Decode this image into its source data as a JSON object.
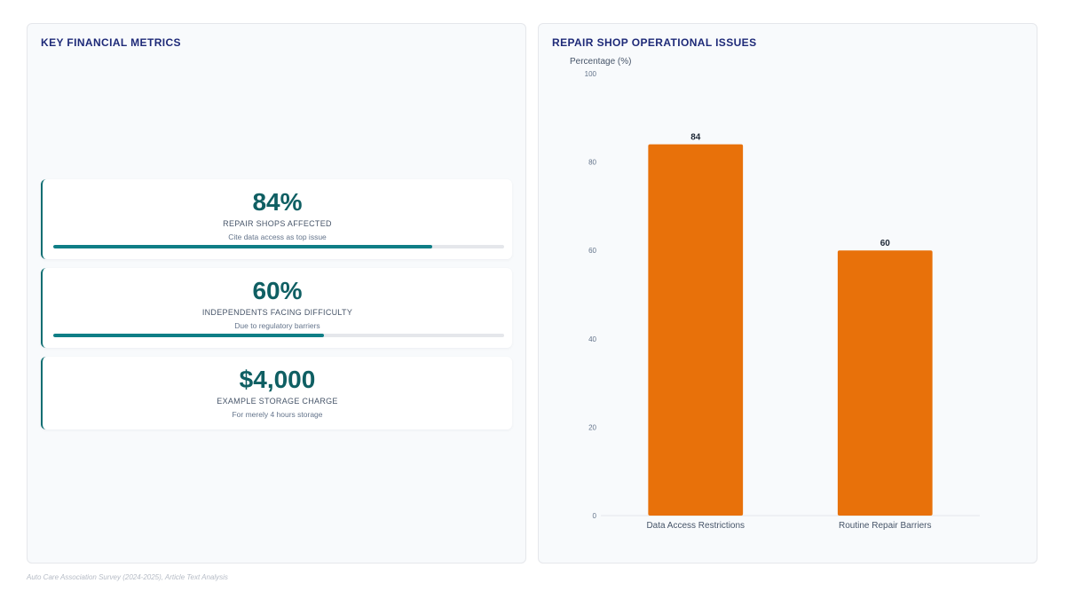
{
  "left_panel": {
    "title": "KEY FINANCIAL METRICS",
    "metrics": [
      {
        "value": "84%",
        "label": "REPAIR SHOPS AFFECTED",
        "sub": "Cite data access as top issue",
        "progress_percent": 84
      },
      {
        "value": "60%",
        "label": "INDEPENDENTS FACING DIFFICULTY",
        "sub": "Due to regulatory barriers",
        "progress_percent": 60
      },
      {
        "value": "$4,000",
        "label": "EXAMPLE STORAGE CHARGE",
        "sub": "For merely 4 hours storage"
      }
    ]
  },
  "right_panel": {
    "title": "REPAIR SHOP OPERATIONAL ISSUES"
  },
  "chart_data": {
    "type": "bar",
    "categories": [
      "Data Access Restrictions",
      "Routine Repair Barriers"
    ],
    "values": [
      84,
      60
    ],
    "ylabel": "Percentage (%)",
    "xlabel": "",
    "ylim": [
      0,
      100
    ],
    "yticks": [
      0,
      20,
      40,
      60,
      80,
      100
    ],
    "data_labels": true,
    "grid": false,
    "bar_color": "#e8710a"
  },
  "footnote": "Auto Care Association Survey (2024-2025), Article Text Analysis",
  "colors": {
    "accent_teal": "#0f7e86",
    "value_teal": "#0f5f63",
    "title_navy": "#1e2a78",
    "bar_orange": "#e8710a"
  }
}
